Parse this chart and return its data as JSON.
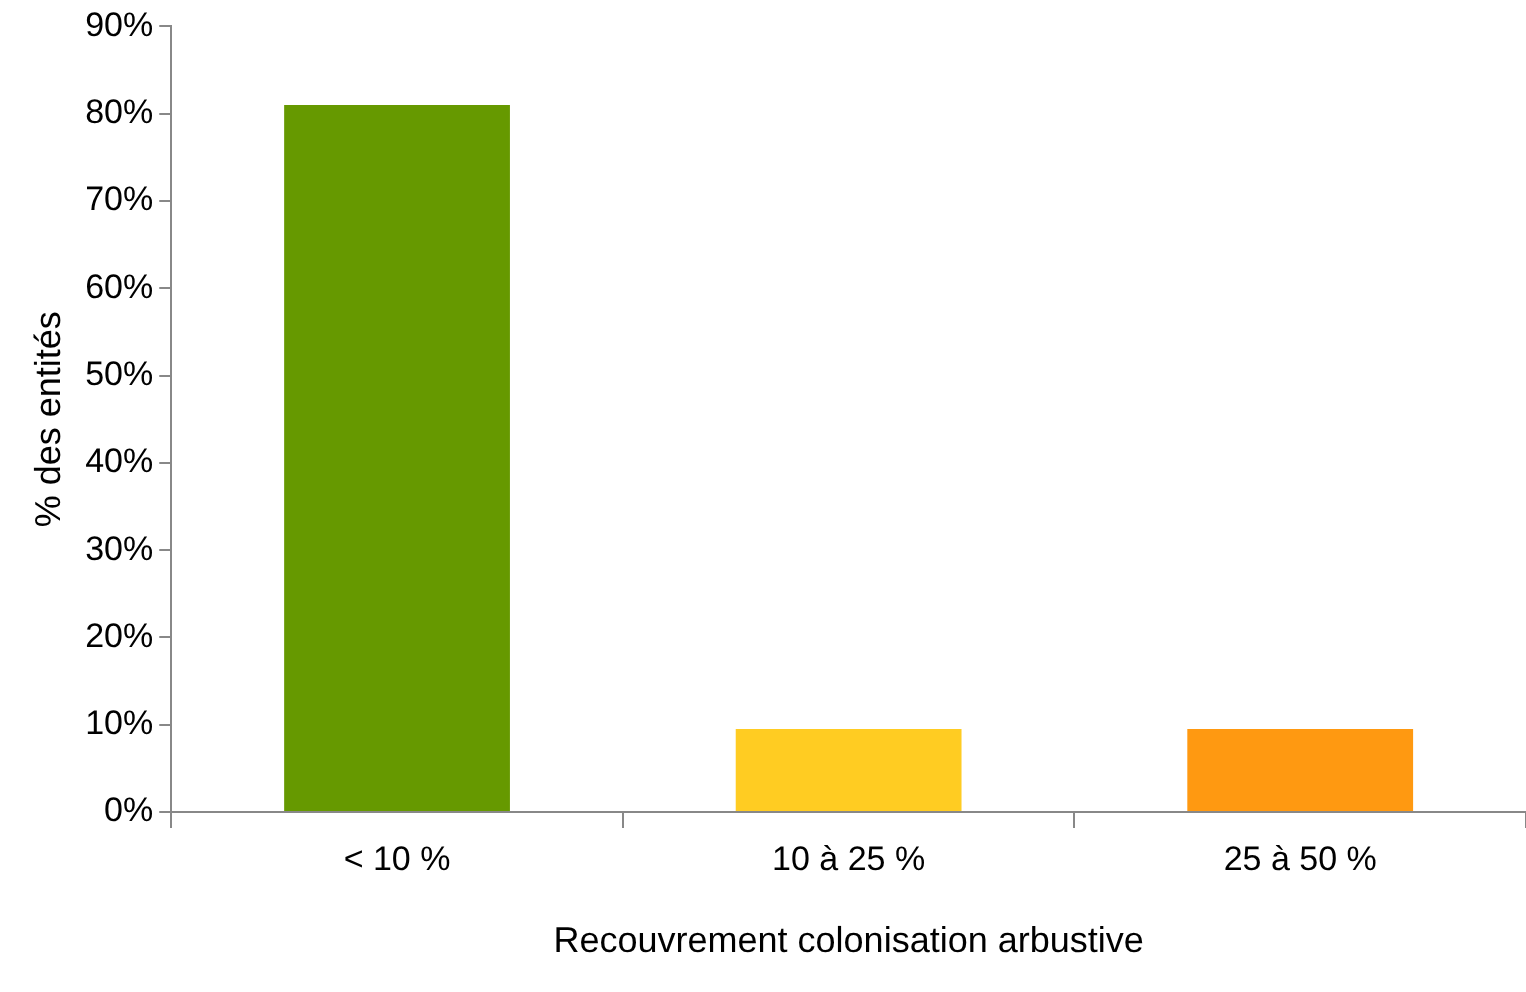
{
  "chart_data": {
    "type": "bar",
    "xlabel": "Recouvrement colonisation arbustive",
    "ylabel": "% des entités",
    "categories": [
      "< 10 %",
      "10 à 25 %",
      "25 à 50 %"
    ],
    "values": [
      81,
      9.5,
      9.5
    ],
    "colors": [
      "#669900",
      "#ffcc22",
      "#ff9911"
    ],
    "ylim": [
      0,
      90
    ],
    "yticks": [
      {
        "value": 0,
        "label": "0%"
      },
      {
        "value": 10,
        "label": "10%"
      },
      {
        "value": 20,
        "label": "20%"
      },
      {
        "value": 30,
        "label": "30%"
      },
      {
        "value": 40,
        "label": "40%"
      },
      {
        "value": 50,
        "label": "50%"
      },
      {
        "value": 60,
        "label": "60%"
      },
      {
        "value": 70,
        "label": "70%"
      },
      {
        "value": 80,
        "label": "80%"
      },
      {
        "value": 90,
        "label": "90%"
      }
    ],
    "grid": false,
    "legend": false
  }
}
